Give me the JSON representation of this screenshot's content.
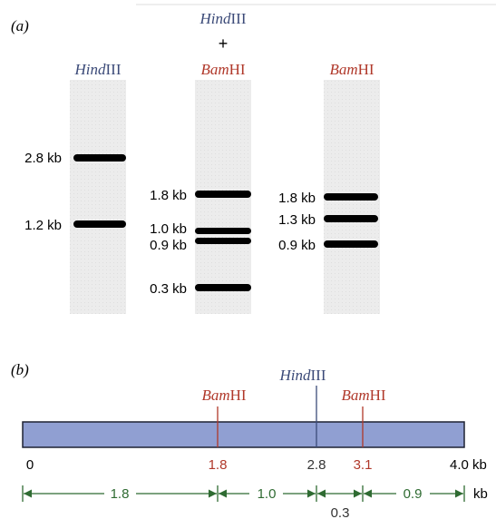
{
  "panel_a": {
    "label": "(a)",
    "lanes": [
      {
        "enzymes": [
          {
            "italic": "Hind",
            "roman": "III"
          }
        ],
        "bands": [
          "2.8 kb",
          "1.2 kb"
        ]
      },
      {
        "enzymes": [
          {
            "italic": "Hind",
            "roman": "III"
          },
          {
            "italic": "Bam",
            "roman": "HI"
          }
        ],
        "joiner": "+",
        "bands": [
          "1.8 kb",
          "1.0 kb",
          "0.9 kb",
          "0.3 kb"
        ]
      },
      {
        "enzymes": [
          {
            "italic": "Bam",
            "roman": "HI"
          }
        ],
        "bands": [
          "1.8 kb",
          "1.3 kb",
          "0.9 kb"
        ]
      }
    ]
  },
  "panel_b": {
    "label": "(b)",
    "sites": [
      {
        "italic": "Bam",
        "roman": "HI"
      },
      {
        "italic": "Hind",
        "roman": "III"
      },
      {
        "italic": "Bam",
        "roman": "HI"
      }
    ],
    "positions": [
      "0",
      "1.8",
      "2.8",
      "3.1",
      "4.0 kb"
    ],
    "segments": [
      "1.8",
      "1.0",
      "0.3",
      "0.9"
    ],
    "unit": "kb"
  }
}
